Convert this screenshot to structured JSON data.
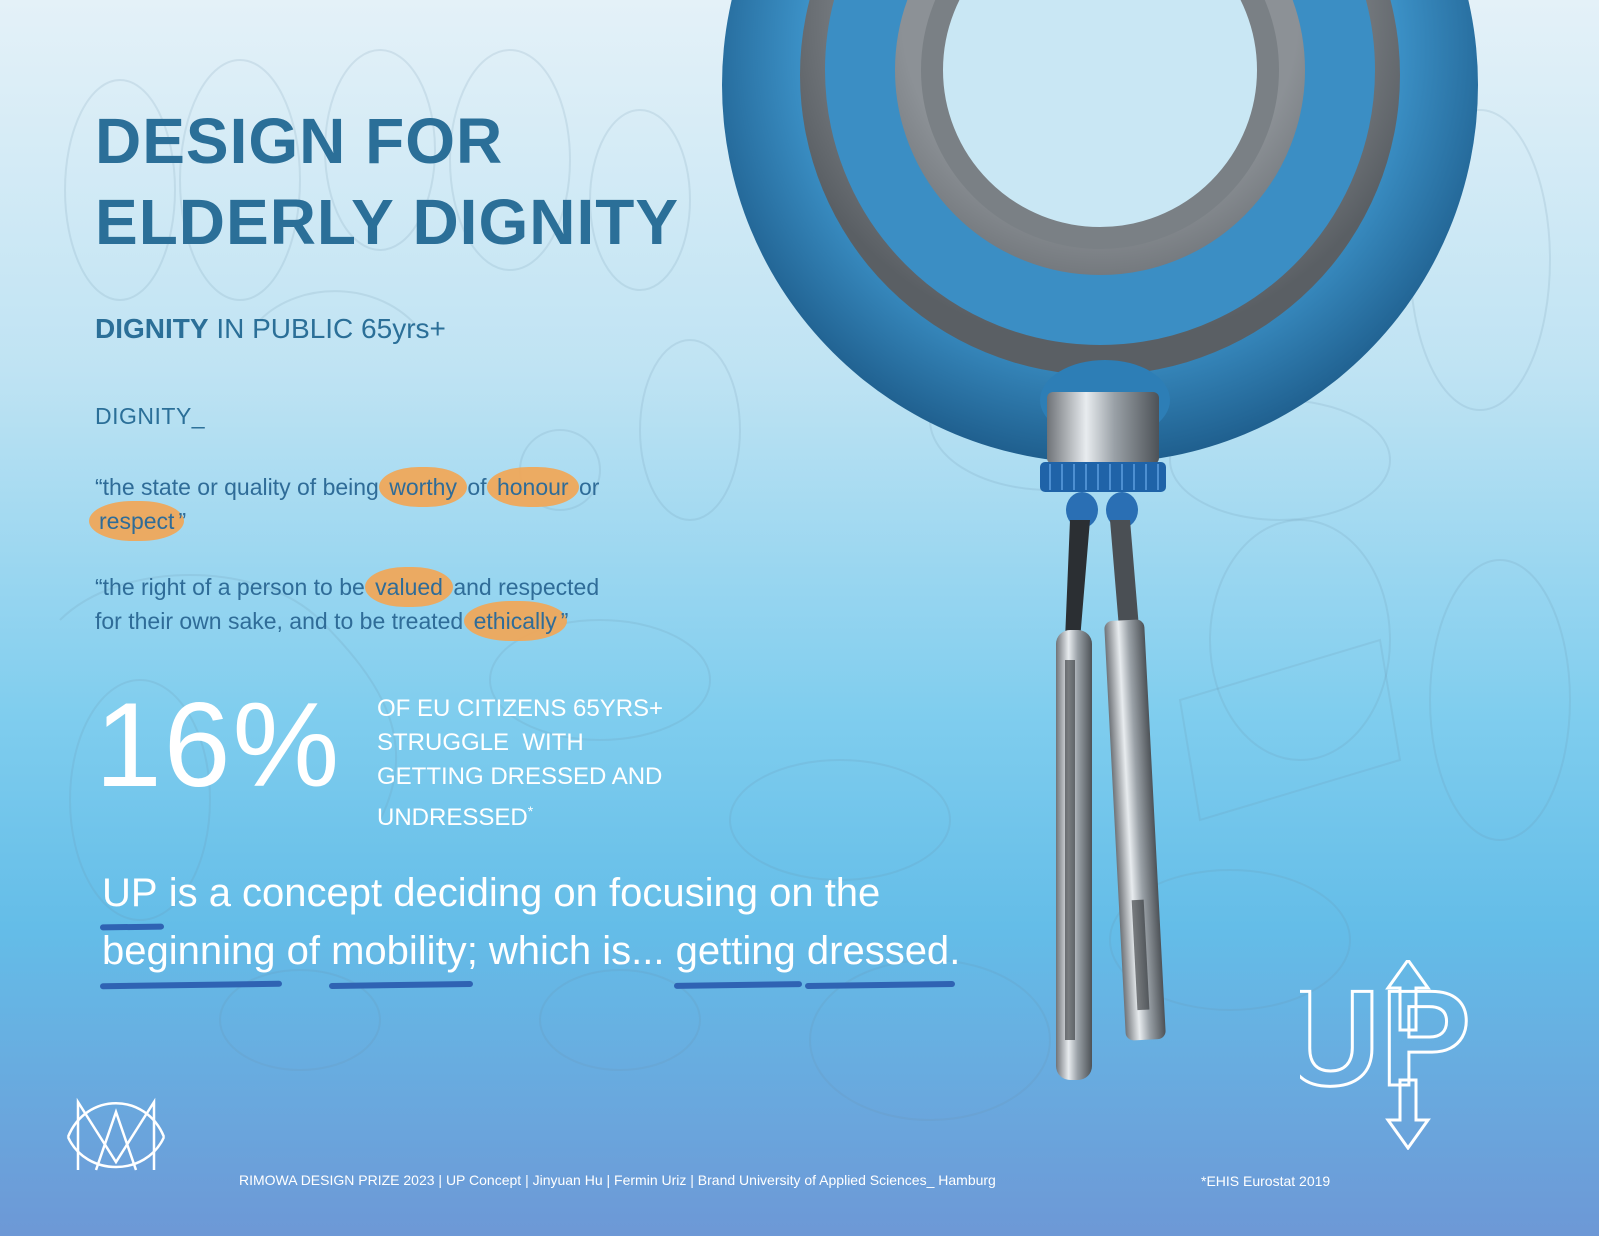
{
  "title": {
    "line1": "DESIGN FOR",
    "line2": "ELDERLY DIGNITY"
  },
  "subtitle": {
    "bold": "DIGNITY",
    "rest": " IN PUBLIC  65yrs+"
  },
  "definition": {
    "label": "DIGNITY_",
    "quote1": {
      "a": "“the state or quality of being ",
      "h1": "worthy",
      "b": " of ",
      "h2": "honour",
      "c": " or",
      "h3": "respect",
      "d": "”"
    },
    "quote2": {
      "a": "“the right of a person to be ",
      "h1": "valued",
      "b": " and respected",
      "c": "for their own sake, and to be treated ",
      "h2": "ethically",
      "d": "”"
    },
    "highlight_color": "#efa85a"
  },
  "stat": {
    "value": "16%",
    "line1": "OF EU CITIZENS 65YRS+",
    "line2": "STRUGGLE  WITH",
    "line3": "GETTING DRESSED AND",
    "line4": "UNDRESSED",
    "footnote_mark": "*"
  },
  "concept": {
    "w1": "UP",
    "t1": " is a concept deciding on focusing on the ",
    "w2": "beginning",
    "t2": " of ",
    "w3": "mobility",
    "t3": "; which is... ",
    "w4": "getting",
    "t4": " ",
    "w5": "dressed",
    "t5": "."
  },
  "logo": {
    "text": "UP"
  },
  "footer": "RIMOWA DESIGN PRIZE 2023 | UP Concept | Jinyuan Hu | Fermin Uriz | Brand University of Applied Sciences_ Hamburg",
  "source": "*EHIS Eurostat 2019",
  "colors": {
    "title": "#2b6f98",
    "ring_blue": "#3a8ac2",
    "underline": "#2f63b3"
  },
  "images": {
    "product": "product-render-ring-with-hooks",
    "mark": "brand-monogram-mark",
    "background": "sketch-drawings"
  }
}
